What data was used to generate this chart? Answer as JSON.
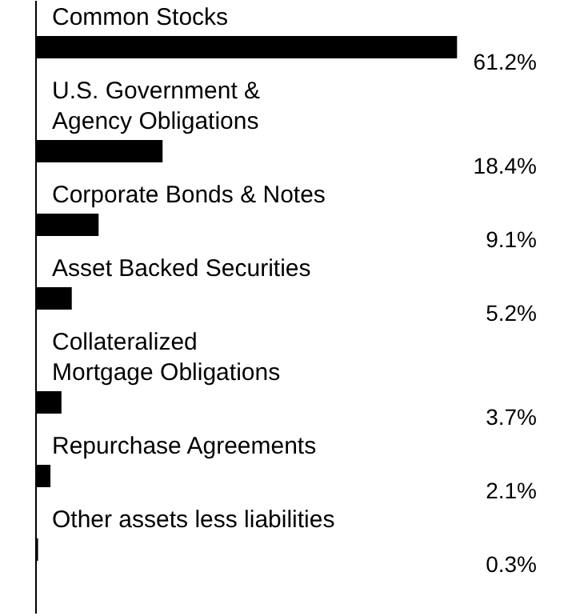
{
  "chart_data": {
    "type": "bar",
    "orientation": "horizontal",
    "categories": [
      "Common Stocks",
      "U.S. Government &\nAgency Obligations",
      "Corporate Bonds & Notes",
      "Asset Backed Securities",
      "Collateralized\nMortgage Obligations",
      "Repurchase Agreements",
      "Other assets less liabilities"
    ],
    "values": [
      61.2,
      18.4,
      9.1,
      5.2,
      3.7,
      2.1,
      0.3
    ],
    "value_labels": [
      "61.2%",
      "18.4%",
      "9.1%",
      "5.2%",
      "3.7%",
      "2.1%",
      "0.3%"
    ],
    "color": "#000000"
  }
}
